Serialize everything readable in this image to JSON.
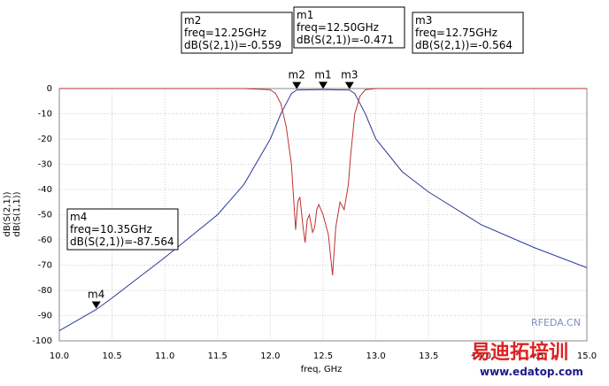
{
  "chart_data": {
    "type": "line",
    "xlabel": "freq, GHz",
    "xlim": [
      10,
      15
    ],
    "xticks": [
      {
        "value": 10,
        "label": "10.0"
      },
      {
        "value": 10.5,
        "label": "10.5"
      },
      {
        "value": 11,
        "label": "11.0"
      },
      {
        "value": 11.5,
        "label": "11.5"
      },
      {
        "value": 12,
        "label": "12.0"
      },
      {
        "value": 12.5,
        "label": "12.5"
      },
      {
        "value": 13,
        "label": "13.0"
      },
      {
        "value": 13.5,
        "label": "13.5"
      },
      {
        "value": 14,
        "label": "14.0"
      },
      {
        "value": 14.5,
        "label": "14.5"
      },
      {
        "value": 15,
        "label": "15.0"
      }
    ],
    "ylim": [
      -100,
      0
    ],
    "yticks": [
      -100,
      -90,
      -80,
      -70,
      -60,
      -50,
      -40,
      -30,
      -20,
      -10,
      0
    ],
    "grid": true,
    "series": [
      {
        "name": "dB(S(2,1))",
        "color": "#2a3a9a",
        "x": [
          10,
          10.35,
          10.5,
          11,
          11.5,
          11.75,
          12,
          12.1,
          12.2,
          12.25,
          12.5,
          12.75,
          12.8,
          12.9,
          13,
          13.25,
          13.5,
          14,
          14.5,
          15
        ],
        "values": [
          -96,
          -87.564,
          -83,
          -67,
          -50,
          -38,
          -20,
          -10,
          -2,
          -0.559,
          -0.471,
          -0.564,
          -2,
          -10,
          -20,
          -33,
          -41,
          -54,
          -63,
          -71
        ]
      },
      {
        "name": "dB(S(1,1))",
        "color": "#c03030",
        "x": [
          10,
          11.75,
          12,
          12.05,
          12.1,
          12.15,
          12.2,
          12.24,
          12.26,
          12.28,
          12.31,
          12.33,
          12.35,
          12.37,
          12.4,
          12.42,
          12.44,
          12.46,
          12.5,
          12.55,
          12.59,
          12.62,
          12.66,
          12.7,
          12.72,
          12.74,
          12.76,
          12.8,
          12.85,
          12.9,
          13,
          15
        ],
        "values": [
          0,
          0,
          -0.5,
          -2,
          -6,
          -15,
          -30,
          -56,
          -45,
          -43,
          -55,
          -61,
          -52,
          -50,
          -57,
          -55,
          -48,
          -46,
          -50,
          -58,
          -74,
          -55,
          -45,
          -48,
          -43,
          -38,
          -27,
          -10,
          -3,
          -0.5,
          0,
          0
        ]
      }
    ],
    "markers": [
      {
        "name": "m1",
        "x": 12.5,
        "y": -0.471,
        "freq": "freq=12.50GHz",
        "value": "dB(S(2,1))=-0.471"
      },
      {
        "name": "m2",
        "x": 12.25,
        "y": -0.559,
        "freq": "freq=12.25GHz",
        "value": "dB(S(2,1))=-0.559"
      },
      {
        "name": "m3",
        "x": 12.75,
        "y": -0.564,
        "freq": "freq=12.75GHz",
        "value": "dB(S(2,1))=-0.564"
      },
      {
        "name": "m4",
        "x": 10.35,
        "y": -87.564,
        "freq": "freq=10.35GHz",
        "value": "dB(S(2,1))=-87.564"
      }
    ],
    "watermarks": [
      "RFEDA.CN",
      "易迪拓培训",
      "www.edatop.com"
    ]
  }
}
